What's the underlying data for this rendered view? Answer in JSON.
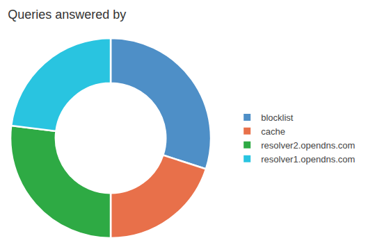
{
  "chart_data": {
    "type": "pie",
    "title": "Queries answered by",
    "categories": [
      "blocklist",
      "cache",
      "resolver2.opendns.com",
      "resolver1.opendns.com"
    ],
    "values": [
      30,
      20,
      27,
      23
    ],
    "colors": [
      "#4e8fc7",
      "#e8704a",
      "#2eaa44",
      "#29c4e0"
    ],
    "legend": "right"
  }
}
